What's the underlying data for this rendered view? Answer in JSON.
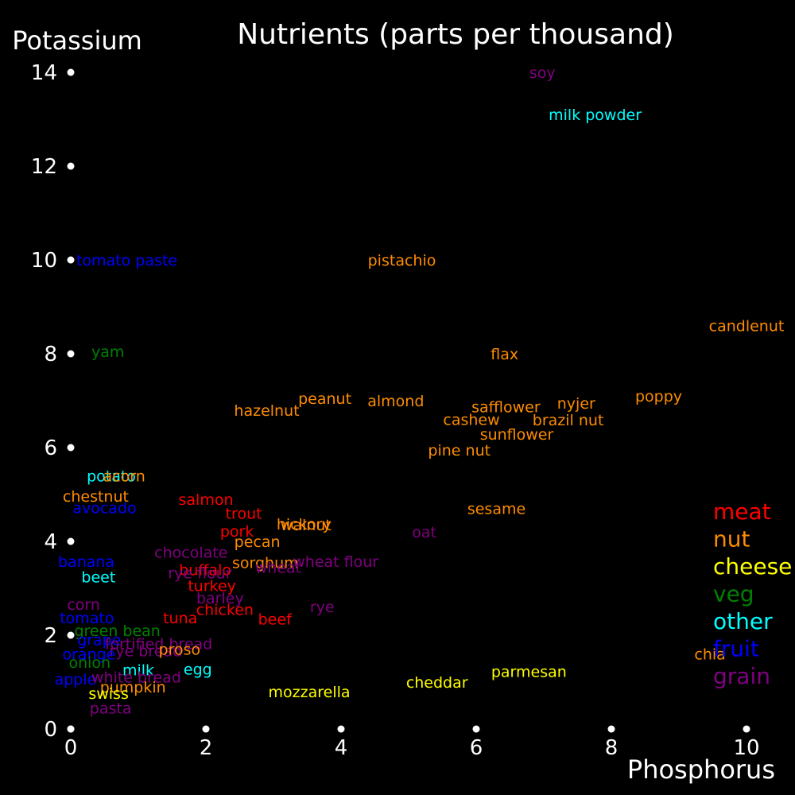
{
  "chart_data": {
    "type": "scatter",
    "title": "Nutrients (parts per thousand)",
    "xlabel": "Phosphorus",
    "ylabel": "Potassium",
    "xlim": [
      0,
      10
    ],
    "ylim": [
      0,
      14
    ],
    "x_ticks": [
      0,
      2,
      4,
      6,
      8,
      10
    ],
    "y_ticks": [
      0,
      2,
      4,
      6,
      8,
      10,
      12,
      14
    ],
    "grid": false,
    "legend_position": "right",
    "categories": [
      {
        "name": "meat",
        "color": "#ff0000"
      },
      {
        "name": "nut",
        "color": "#ff8c00"
      },
      {
        "name": "cheese",
        "color": "#ffff00"
      },
      {
        "name": "veg",
        "color": "#008000"
      },
      {
        "name": "other",
        "color": "#00ffff"
      },
      {
        "name": "fruit",
        "color": "#0000ff"
      },
      {
        "name": "grain",
        "color": "#800080"
      }
    ],
    "points": [
      {
        "label": "soy",
        "category": "grain",
        "x": 6.98,
        "y": 14.0
      },
      {
        "label": "milk powder",
        "category": "other",
        "x": 7.76,
        "y": 13.1
      },
      {
        "label": "tomato paste",
        "category": "fruit",
        "x": 0.83,
        "y": 10.0
      },
      {
        "label": "pistachio",
        "category": "nut",
        "x": 4.9,
        "y": 10.0
      },
      {
        "label": "candlenut",
        "category": "nut",
        "x": 10.0,
        "y": 8.6
      },
      {
        "label": "yam",
        "category": "veg",
        "x": 0.55,
        "y": 8.05
      },
      {
        "label": "flax",
        "category": "nut",
        "x": 6.42,
        "y": 8.0
      },
      {
        "label": "poppy",
        "category": "nut",
        "x": 8.7,
        "y": 7.1
      },
      {
        "label": "peanut",
        "category": "nut",
        "x": 3.76,
        "y": 7.05
      },
      {
        "label": "almond",
        "category": "nut",
        "x": 4.81,
        "y": 7.0
      },
      {
        "label": "nyjer",
        "category": "nut",
        "x": 7.48,
        "y": 6.95
      },
      {
        "label": "safflower",
        "category": "nut",
        "x": 6.44,
        "y": 6.87
      },
      {
        "label": "hazelnut",
        "category": "nut",
        "x": 2.9,
        "y": 6.8
      },
      {
        "label": "brazil nut",
        "category": "nut",
        "x": 7.36,
        "y": 6.59
      },
      {
        "label": "cashew",
        "category": "nut",
        "x": 5.93,
        "y": 6.6
      },
      {
        "label": "sunflower",
        "category": "nut",
        "x": 6.6,
        "y": 6.29
      },
      {
        "label": "pine nut",
        "category": "nut",
        "x": 5.75,
        "y": 5.95
      },
      {
        "label": "potato",
        "category": "other",
        "x": 0.6,
        "y": 5.4
      },
      {
        "label": "acorn",
        "category": "nut",
        "x": 0.79,
        "y": 5.4
      },
      {
        "label": "chestnut",
        "category": "nut",
        "x": 0.37,
        "y": 4.97
      },
      {
        "label": "salmon",
        "category": "meat",
        "x": 2.0,
        "y": 4.9
      },
      {
        "label": "avocado",
        "category": "fruit",
        "x": 0.5,
        "y": 4.72
      },
      {
        "label": "sesame",
        "category": "nut",
        "x": 6.3,
        "y": 4.7
      },
      {
        "label": "trout",
        "category": "meat",
        "x": 2.56,
        "y": 4.6
      },
      {
        "label": "walnut",
        "category": "nut",
        "x": 3.48,
        "y": 4.36
      },
      {
        "label": "hickory",
        "category": "nut",
        "x": 3.45,
        "y": 4.37
      },
      {
        "label": "pork",
        "category": "meat",
        "x": 2.46,
        "y": 4.22
      },
      {
        "label": "oat",
        "category": "grain",
        "x": 5.23,
        "y": 4.2
      },
      {
        "label": "pecan",
        "category": "nut",
        "x": 2.76,
        "y": 4.0
      },
      {
        "label": "chocolate",
        "category": "grain",
        "x": 1.78,
        "y": 3.77
      },
      {
        "label": "banana",
        "category": "fruit",
        "x": 0.23,
        "y": 3.58
      },
      {
        "label": "sorghum",
        "category": "nut",
        "x": 2.88,
        "y": 3.55
      },
      {
        "label": "wheat flour",
        "category": "grain",
        "x": 3.92,
        "y": 3.58
      },
      {
        "label": "wheat",
        "category": "grain",
        "x": 3.07,
        "y": 3.45
      },
      {
        "label": "buffalo",
        "category": "meat",
        "x": 1.99,
        "y": 3.4
      },
      {
        "label": "rye flour",
        "category": "grain",
        "x": 1.91,
        "y": 3.33
      },
      {
        "label": "beet",
        "category": "other",
        "x": 0.41,
        "y": 3.25
      },
      {
        "label": "turkey",
        "category": "meat",
        "x": 2.09,
        "y": 3.06
      },
      {
        "label": "barley",
        "category": "grain",
        "x": 2.21,
        "y": 2.8
      },
      {
        "label": "corn",
        "category": "grain",
        "x": 0.19,
        "y": 2.66
      },
      {
        "label": "rye",
        "category": "grain",
        "x": 3.72,
        "y": 2.61
      },
      {
        "label": "chicken",
        "category": "meat",
        "x": 2.28,
        "y": 2.55
      },
      {
        "label": "tomato",
        "category": "fruit",
        "x": 0.24,
        "y": 2.37
      },
      {
        "label": "tuna",
        "category": "meat",
        "x": 1.62,
        "y": 2.37
      },
      {
        "label": "beef",
        "category": "meat",
        "x": 3.02,
        "y": 2.35
      },
      {
        "label": "green bean",
        "category": "veg",
        "x": 0.69,
        "y": 2.1
      },
      {
        "label": "grape",
        "category": "fruit",
        "x": 0.42,
        "y": 1.91
      },
      {
        "label": "fortified bread",
        "category": "grain",
        "x": 1.3,
        "y": 1.82
      },
      {
        "label": "rye bread",
        "category": "grain",
        "x": 1.11,
        "y": 1.67
      },
      {
        "label": "orange",
        "category": "fruit",
        "x": 0.27,
        "y": 1.6
      },
      {
        "label": "proso",
        "category": "nut",
        "x": 1.61,
        "y": 1.7
      },
      {
        "label": "onion",
        "category": "veg",
        "x": 0.28,
        "y": 1.42
      },
      {
        "label": "chia",
        "category": "nut",
        "x": 9.46,
        "y": 1.6
      },
      {
        "label": "milk",
        "category": "other",
        "x": 1.0,
        "y": 1.26
      },
      {
        "label": "egg",
        "category": "other",
        "x": 1.88,
        "y": 1.28
      },
      {
        "label": "parmesan",
        "category": "cheese",
        "x": 6.78,
        "y": 1.23
      },
      {
        "label": "apple",
        "category": "fruit",
        "x": 0.07,
        "y": 1.07
      },
      {
        "label": "white bread",
        "category": "grain",
        "x": 0.97,
        "y": 1.11
      },
      {
        "label": "pumpkin",
        "category": "nut",
        "x": 0.92,
        "y": 0.9
      },
      {
        "label": "cheddar",
        "category": "cheese",
        "x": 5.42,
        "y": 1.0
      },
      {
        "label": "mozzarella",
        "category": "cheese",
        "x": 3.53,
        "y": 0.8
      },
      {
        "label": "swiss",
        "category": "cheese",
        "x": 0.56,
        "y": 0.76
      },
      {
        "label": "pasta",
        "category": "grain",
        "x": 0.59,
        "y": 0.45
      }
    ]
  }
}
